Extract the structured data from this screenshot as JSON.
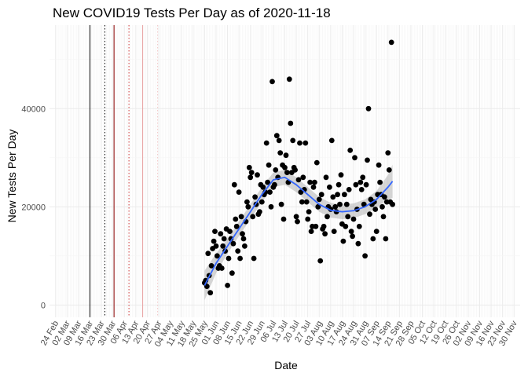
{
  "chart_data": {
    "type": "scatter",
    "title": "New COVID19 Tests Per Day as of 2020-11-18",
    "xlabel": "Date",
    "ylabel": "New Tests Per Day",
    "ylim": [
      -2500,
      57000
    ],
    "y_ticks": [
      0,
      20000,
      40000
    ],
    "y_tick_labels": [
      "0",
      "20000",
      "40000"
    ],
    "x_ticks": [
      "24 Feb",
      "02 Mar",
      "09 Mar",
      "16 Mar",
      "23 Mar",
      "30 Mar",
      "06 Apr",
      "13 Apr",
      "20 Apr",
      "27 Apr",
      "04 May",
      "11 May",
      "18 May",
      "25 May",
      "01 Jun",
      "08 Jun",
      "15 Jun",
      "22 Jun",
      "29 Jun",
      "06 Jul",
      "13 Jul",
      "20 Jul",
      "27 Jul",
      "03 Aug",
      "10 Aug",
      "17 Aug",
      "24 Aug",
      "31 Aug",
      "07 Sep",
      "14 Sep",
      "21 Sep",
      "28 Sep",
      "05 Oct",
      "12 Oct",
      "19 Oct",
      "26 Oct",
      "02 Nov",
      "09 Nov",
      "16 Nov",
      "23 Nov",
      "30 Nov"
    ],
    "grid": true,
    "reference_lines": [
      {
        "week": 3.0,
        "color": "#000000",
        "style": "solid"
      },
      {
        "week": 4.3,
        "color": "#000000",
        "style": "dotted"
      },
      {
        "week": 5.1,
        "color": "#8b0000",
        "style": "solid"
      },
      {
        "week": 6.4,
        "color": "#cc3333",
        "style": "dotted"
      },
      {
        "week": 7.6,
        "color": "#e8a0a0",
        "style": "solid"
      },
      {
        "week": 8.9,
        "color": "#f4c8c8",
        "style": "dotted"
      }
    ],
    "series": [
      {
        "style": "points",
        "color": "#000000",
        "points": [
          [
            13.0,
            4500
          ],
          [
            13.1,
            5000
          ],
          [
            13.2,
            3800
          ],
          [
            13.3,
            10500
          ],
          [
            13.4,
            6000
          ],
          [
            13.5,
            2500
          ],
          [
            13.6,
            8000
          ],
          [
            13.7,
            11500
          ],
          [
            13.8,
            13000
          ],
          [
            13.9,
            15000
          ],
          [
            14.0,
            12000
          ],
          [
            14.1,
            10000
          ],
          [
            14.2,
            7500
          ],
          [
            14.3,
            8000
          ],
          [
            14.4,
            14500
          ],
          [
            14.5,
            7500
          ],
          [
            14.6,
            12000
          ],
          [
            14.7,
            13500
          ],
          [
            14.8,
            11000
          ],
          [
            14.9,
            15500
          ],
          [
            15.0,
            4000
          ],
          [
            15.1,
            9500
          ],
          [
            15.2,
            15000
          ],
          [
            15.3,
            13500
          ],
          [
            15.4,
            6500
          ],
          [
            15.5,
            12500
          ],
          [
            15.6,
            24500
          ],
          [
            15.7,
            17500
          ],
          [
            15.8,
            16000
          ],
          [
            15.9,
            11000
          ],
          [
            16.0,
            23000
          ],
          [
            16.1,
            9500
          ],
          [
            16.2,
            18000
          ],
          [
            16.3,
            14500
          ],
          [
            16.4,
            13500
          ],
          [
            16.5,
            12000
          ],
          [
            16.6,
            17000
          ],
          [
            16.7,
            21000
          ],
          [
            16.8,
            20000
          ],
          [
            16.9,
            28000
          ],
          [
            17.0,
            26000
          ],
          [
            17.1,
            27000
          ],
          [
            17.2,
            18000
          ],
          [
            17.3,
            9500
          ],
          [
            17.4,
            22000
          ],
          [
            17.5,
            20500
          ],
          [
            17.6,
            26500
          ],
          [
            17.7,
            18500
          ],
          [
            17.8,
            19000
          ],
          [
            17.9,
            24500
          ],
          [
            18.0,
            21000
          ],
          [
            18.1,
            24000
          ],
          [
            18.2,
            22500
          ],
          [
            18.3,
            23000
          ],
          [
            18.4,
            33000
          ],
          [
            18.5,
            25000
          ],
          [
            18.6,
            28500
          ],
          [
            18.7,
            23000
          ],
          [
            18.8,
            20000
          ],
          [
            18.9,
            45500
          ],
          [
            19.0,
            24000
          ],
          [
            19.1,
            24500
          ],
          [
            19.2,
            27500
          ],
          [
            19.3,
            34500
          ],
          [
            19.4,
            26000
          ],
          [
            19.5,
            33500
          ],
          [
            19.6,
            31000
          ],
          [
            19.7,
            20500
          ],
          [
            19.8,
            28500
          ],
          [
            19.9,
            17500
          ],
          [
            20.0,
            28000
          ],
          [
            20.1,
            30500
          ],
          [
            20.2,
            27000
          ],
          [
            20.3,
            25000
          ],
          [
            20.4,
            46000
          ],
          [
            20.5,
            37000
          ],
          [
            20.6,
            27000
          ],
          [
            20.7,
            33500
          ],
          [
            20.8,
            28000
          ],
          [
            20.9,
            27500
          ],
          [
            21.0,
            18000
          ],
          [
            21.1,
            17000
          ],
          [
            21.2,
            25500
          ],
          [
            21.3,
            33000
          ],
          [
            21.4,
            23000
          ],
          [
            21.5,
            21000
          ],
          [
            21.6,
            26000
          ],
          [
            21.7,
            23500
          ],
          [
            21.8,
            33000
          ],
          [
            21.9,
            21000
          ],
          [
            22.0,
            17500
          ],
          [
            22.1,
            19000
          ],
          [
            22.2,
            25000
          ],
          [
            22.3,
            15000
          ],
          [
            22.4,
            16000
          ],
          [
            22.5,
            24000
          ],
          [
            22.6,
            25000
          ],
          [
            22.7,
            16000
          ],
          [
            22.8,
            29000
          ],
          [
            22.9,
            20000
          ],
          [
            23.0,
            21500
          ],
          [
            23.1,
            9000
          ],
          [
            23.2,
            22500
          ],
          [
            23.3,
            15500
          ],
          [
            23.4,
            16000
          ],
          [
            23.5,
            14500
          ],
          [
            23.6,
            26000
          ],
          [
            23.7,
            18000
          ],
          [
            23.8,
            20000
          ],
          [
            23.9,
            24000
          ],
          [
            24.0,
            19500
          ],
          [
            24.1,
            33500
          ],
          [
            24.2,
            22000
          ],
          [
            24.3,
            15000
          ],
          [
            24.4,
            20000
          ],
          [
            24.5,
            19000
          ],
          [
            24.6,
            22500
          ],
          [
            24.7,
            24500
          ],
          [
            24.8,
            20500
          ],
          [
            24.9,
            26500
          ],
          [
            25.0,
            16500
          ],
          [
            25.1,
            13000
          ],
          [
            25.2,
            22500
          ],
          [
            25.3,
            16000
          ],
          [
            25.4,
            20500
          ],
          [
            25.5,
            18000
          ],
          [
            25.6,
            23500
          ],
          [
            25.7,
            31500
          ],
          [
            25.8,
            15000
          ],
          [
            25.9,
            14000
          ],
          [
            26.0,
            17500
          ],
          [
            26.1,
            30000
          ],
          [
            26.2,
            24500
          ],
          [
            26.3,
            19500
          ],
          [
            26.4,
            12500
          ],
          [
            26.5,
            16000
          ],
          [
            26.6,
            25000
          ],
          [
            26.7,
            23500
          ],
          [
            26.8,
            26000
          ],
          [
            26.9,
            20500
          ],
          [
            27.0,
            10000
          ],
          [
            27.1,
            24500
          ],
          [
            27.2,
            29500
          ],
          [
            27.3,
            40000
          ],
          [
            27.4,
            18500
          ],
          [
            27.5,
            21500
          ],
          [
            27.6,
            20500
          ],
          [
            27.7,
            13500
          ],
          [
            27.8,
            21000
          ],
          [
            27.9,
            19500
          ],
          [
            28.0,
            15000
          ],
          [
            28.1,
            22500
          ],
          [
            28.2,
            28500
          ],
          [
            28.3,
            25000
          ],
          [
            28.4,
            22500
          ],
          [
            28.5,
            20000
          ],
          [
            28.6,
            18000
          ],
          [
            28.7,
            22000
          ],
          [
            28.8,
            13500
          ],
          [
            28.9,
            21000
          ],
          [
            29.0,
            31000
          ],
          [
            29.1,
            27500
          ],
          [
            29.2,
            21000
          ],
          [
            29.3,
            53500
          ],
          [
            29.4,
            20500
          ]
        ]
      },
      {
        "style": "smooth",
        "color": "#3366ff",
        "ribbon_color": "#999999",
        "x": [
          13.0,
          14.0,
          15.0,
          16.0,
          17.0,
          18.0,
          19.0,
          20.0,
          21.0,
          22.0,
          23.0,
          24.0,
          25.0,
          26.0,
          27.0,
          28.0,
          29.0,
          29.4
        ],
        "y": [
          4000,
          8500,
          12000,
          15500,
          19000,
          22500,
          25500,
          26000,
          24500,
          22500,
          20500,
          19300,
          19000,
          19200,
          20000,
          21500,
          24000,
          25200
        ],
        "ci_low": [
          1000,
          6500,
          10500,
          14000,
          17500,
          21000,
          24000,
          24500,
          23000,
          21000,
          19000,
          17800,
          17500,
          17700,
          18500,
          19800,
          21500,
          21800
        ],
        "ci_high": [
          7000,
          10500,
          13500,
          17000,
          20500,
          24000,
          27000,
          27500,
          26000,
          24000,
          22000,
          20800,
          20500,
          20700,
          21500,
          23200,
          26500,
          28600
        ]
      }
    ]
  }
}
